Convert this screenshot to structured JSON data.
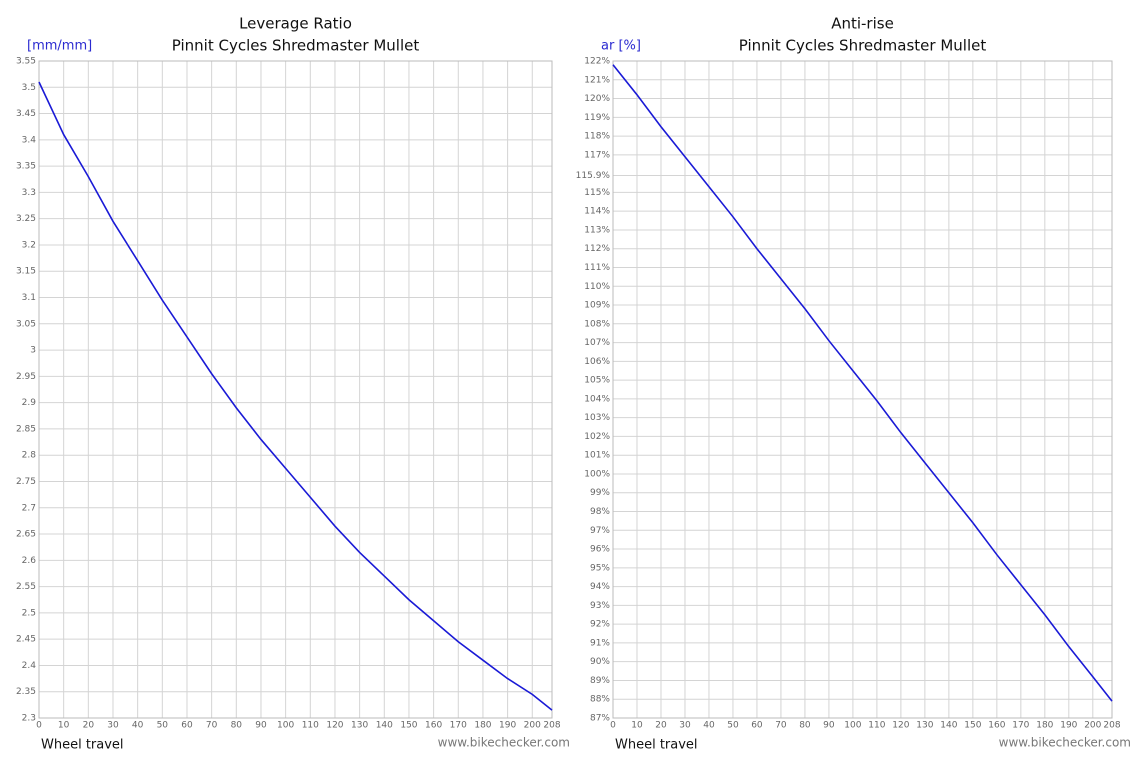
{
  "chart_data": [
    {
      "type": "line",
      "title": "Leverage Ratio",
      "subtitle": "Pinnit Cycles Shredmaster Mullet",
      "ylabel": "[mm/mm]",
      "xlabel": "Wheel travel",
      "source": "www.bikechecker.com",
      "x": [
        0,
        10,
        20,
        30,
        40,
        50,
        60,
        70,
        80,
        90,
        100,
        110,
        120,
        130,
        140,
        150,
        160,
        170,
        180,
        190,
        200,
        208
      ],
      "values": [
        3.51,
        3.41,
        3.33,
        3.245,
        3.17,
        3.095,
        3.025,
        2.955,
        2.89,
        2.83,
        2.775,
        2.72,
        2.665,
        2.615,
        2.57,
        2.525,
        2.485,
        2.445,
        2.41,
        2.375,
        2.345,
        2.315
      ],
      "color": "#1a1ad6",
      "grid": true,
      "xlim": [
        0,
        208
      ],
      "xticks": [
        0,
        10,
        20,
        30,
        40,
        50,
        60,
        70,
        80,
        90,
        100,
        110,
        120,
        130,
        140,
        150,
        160,
        170,
        180,
        190,
        200,
        208
      ],
      "ylim": [
        2.3,
        3.55
      ],
      "yticks": [
        2.3,
        2.35,
        2.4,
        2.45,
        2.5,
        2.55,
        2.6,
        2.65,
        2.7,
        2.75,
        2.8,
        2.85,
        2.9,
        2.95,
        3,
        3.05,
        3.1,
        3.15,
        3.2,
        3.25,
        3.3,
        3.35,
        3.4,
        3.45,
        3.5,
        3.55
      ]
    },
    {
      "type": "line",
      "title": "Anti-rise",
      "subtitle": "Pinnit Cycles Shredmaster Mullet",
      "ylabel": "ar [%]",
      "xlabel": "Wheel travel",
      "source": "www.bikechecker.com",
      "x": [
        0,
        10,
        20,
        30,
        40,
        50,
        60,
        70,
        80,
        90,
        100,
        110,
        120,
        130,
        140,
        150,
        160,
        170,
        180,
        190,
        200,
        208
      ],
      "values": [
        121.8,
        120.2,
        118.5,
        116.9,
        115.3,
        113.7,
        112.0,
        110.4,
        108.8,
        107.1,
        105.5,
        103.9,
        102.2,
        100.6,
        99.0,
        97.4,
        95.7,
        94.1,
        92.5,
        90.8,
        89.2,
        87.9
      ],
      "color": "#1a1ad6",
      "grid": true,
      "xlim": [
        0,
        208
      ],
      "xticks": [
        0,
        10,
        20,
        30,
        40,
        50,
        60,
        70,
        80,
        90,
        100,
        110,
        120,
        130,
        140,
        150,
        160,
        170,
        180,
        190,
        200,
        208
      ],
      "ylim": [
        87,
        122
      ],
      "yticks": [
        {
          "value": 87,
          "label": "87%"
        },
        {
          "value": 88,
          "label": "88%"
        },
        {
          "value": 89,
          "label": "89%"
        },
        {
          "value": 90,
          "label": "90%"
        },
        {
          "value": 91,
          "label": "91%"
        },
        {
          "value": 92,
          "label": "92%"
        },
        {
          "value": 93,
          "label": "93%"
        },
        {
          "value": 94,
          "label": "94%"
        },
        {
          "value": 95,
          "label": "95%"
        },
        {
          "value": 96,
          "label": "96%"
        },
        {
          "value": 97,
          "label": "97%"
        },
        {
          "value": 98,
          "label": "98%"
        },
        {
          "value": 99,
          "label": "99%"
        },
        {
          "value": 100,
          "label": "100%"
        },
        {
          "value": 101,
          "label": "101%"
        },
        {
          "value": 102,
          "label": "102%"
        },
        {
          "value": 103,
          "label": "103%"
        },
        {
          "value": 104,
          "label": "104%"
        },
        {
          "value": 105,
          "label": "105%"
        },
        {
          "value": 106,
          "label": "106%"
        },
        {
          "value": 107,
          "label": "107%"
        },
        {
          "value": 108,
          "label": "108%"
        },
        {
          "value": 109,
          "label": "109%"
        },
        {
          "value": 110,
          "label": "110%"
        },
        {
          "value": 111,
          "label": "111%"
        },
        {
          "value": 112,
          "label": "112%"
        },
        {
          "value": 113,
          "label": "113%"
        },
        {
          "value": 114,
          "label": "114%"
        },
        {
          "value": 115,
          "label": "115%"
        },
        {
          "value": 115.9,
          "label": "115.9%"
        },
        {
          "value": 117,
          "label": "117%"
        },
        {
          "value": 118,
          "label": "118%"
        },
        {
          "value": 119,
          "label": "119%"
        },
        {
          "value": 120,
          "label": "120%"
        },
        {
          "value": 121,
          "label": "121%"
        },
        {
          "value": 122,
          "label": "122%"
        }
      ]
    }
  ]
}
